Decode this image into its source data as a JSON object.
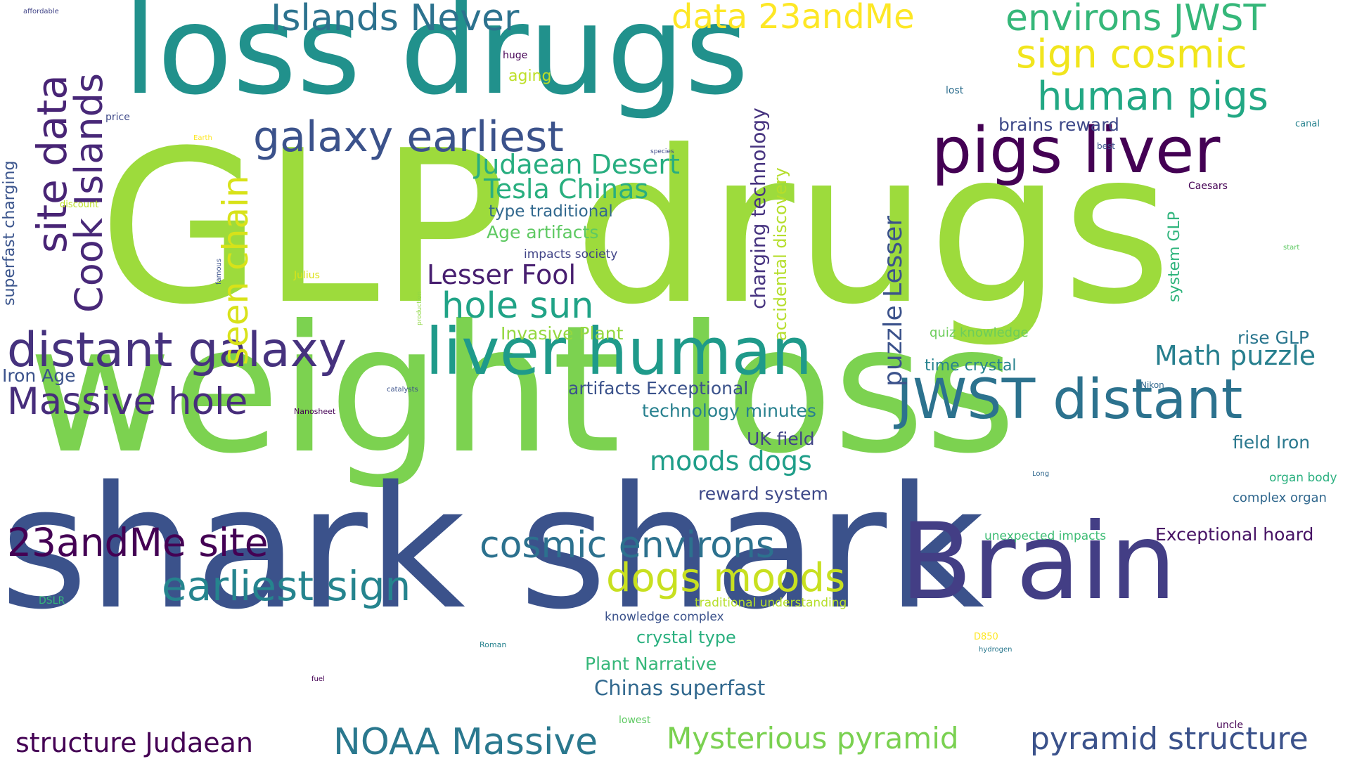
{
  "words": [
    {
      "text": "GLP drugs",
      "color": "#9ddb3c"
    },
    {
      "text": "weight loss",
      "color": "#7cd250"
    },
    {
      "text": "shark shark",
      "color": "#3b528b"
    },
    {
      "text": "loss drugs",
      "color": "#21918c"
    },
    {
      "text": "Brain",
      "color": "#433e85"
    },
    {
      "text": "pigs liver",
      "color": "#440154"
    },
    {
      "text": "liver human",
      "color": "#1f9a8a"
    },
    {
      "text": "JWST distant",
      "color": "#2c728e"
    },
    {
      "text": "distant galaxy",
      "color": "#46327e"
    },
    {
      "text": "Massive hole",
      "color": "#472d7b"
    },
    {
      "text": "23andMe site",
      "color": "#440154"
    },
    {
      "text": "site data",
      "color": "#482475"
    },
    {
      "text": "Cook Islands",
      "color": "#482878"
    },
    {
      "text": "seen chain",
      "color": "#d8e219"
    },
    {
      "text": "galaxy earliest",
      "color": "#3b528b"
    },
    {
      "text": "Islands Never",
      "color": "#2c728e"
    },
    {
      "text": "data 23andMe",
      "color": "#fde725"
    },
    {
      "text": "environs JWST",
      "color": "#35b779"
    },
    {
      "text": "sign cosmic",
      "color": "#f1e51d"
    },
    {
      "text": "human pigs",
      "color": "#22a884"
    },
    {
      "text": "brains reward",
      "color": "#3e4989"
    },
    {
      "text": "Judaean Desert",
      "color": "#28ae80"
    },
    {
      "text": "Tesla Chinas",
      "color": "#29af7f"
    },
    {
      "text": "type traditional",
      "color": "#31688e"
    },
    {
      "text": "Age artifacts",
      "color": "#5ec962"
    },
    {
      "text": "impacts society",
      "color": "#414487"
    },
    {
      "text": "Lesser Fool",
      "color": "#481f70"
    },
    {
      "text": "hole sun",
      "color": "#20a386"
    },
    {
      "text": "Invasive Plant",
      "color": "#95d840"
    },
    {
      "text": "cosmic environs",
      "color": "#2c718e"
    },
    {
      "text": "earliest sign",
      "color": "#25848e"
    },
    {
      "text": "dogs moods",
      "color": "#c8e020"
    },
    {
      "text": "artifacts Exceptional",
      "color": "#3b528b"
    },
    {
      "text": "technology minutes",
      "color": "#27808e"
    },
    {
      "text": "UK field",
      "color": "#414487"
    },
    {
      "text": "moods dogs",
      "color": "#1f9e89"
    },
    {
      "text": "reward system",
      "color": "#3e4989"
    },
    {
      "text": "charging technology",
      "color": "#46337f"
    },
    {
      "text": "accidental discovery",
      "color": "#b5de2b"
    },
    {
      "text": "puzzle Lesser",
      "color": "#3b528b"
    },
    {
      "text": "superfast charging",
      "color": "#3a548c"
    },
    {
      "text": "system GLP",
      "color": "#2fb47c"
    },
    {
      "text": "Math puzzle",
      "color": "#277f8e"
    },
    {
      "text": "time crystal",
      "color": "#26828e"
    },
    {
      "text": "rise GLP",
      "color": "#2a768e"
    },
    {
      "text": "quiz knowledge",
      "color": "#6ccd5a"
    },
    {
      "text": "field Iron",
      "color": "#2a788e"
    },
    {
      "text": "organ body",
      "color": "#2ab07f"
    },
    {
      "text": "complex organ",
      "color": "#31688e"
    },
    {
      "text": "unexpected impacts",
      "color": "#3dbc74"
    },
    {
      "text": "Exceptional hoard",
      "color": "#471365"
    },
    {
      "text": "pyramid structure",
      "color": "#3b528b"
    },
    {
      "text": "Mysterious pyramid",
      "color": "#7ad151"
    },
    {
      "text": "NOAA Massive",
      "color": "#2a788e"
    },
    {
      "text": "structure Judaean",
      "color": "#440154"
    },
    {
      "text": "Chinas superfast",
      "color": "#31688e"
    },
    {
      "text": "Plant Narrative",
      "color": "#35b779"
    },
    {
      "text": "crystal type",
      "color": "#2ab07f"
    },
    {
      "text": "knowledge complex",
      "color": "#3b528b"
    },
    {
      "text": "traditional understanding",
      "color": "#b5de2b"
    },
    {
      "text": "Iron Age",
      "color": "#3b528b"
    },
    {
      "text": "huge",
      "color": "#440154"
    },
    {
      "text": "aging",
      "color": "#bddf26"
    },
    {
      "text": "lost",
      "color": "#2e6e8e"
    },
    {
      "text": "best",
      "color": "#3b528b"
    },
    {
      "text": "canal",
      "color": "#26828e"
    },
    {
      "text": "Caesars",
      "color": "#440154"
    },
    {
      "text": "start",
      "color": "#5ec962"
    },
    {
      "text": "price",
      "color": "#3e4989"
    },
    {
      "text": "affordable",
      "color": "#414487"
    },
    {
      "text": "Earth",
      "color": "#fde725"
    },
    {
      "text": "discount",
      "color": "#bddf26"
    },
    {
      "text": "Julius",
      "color": "#dde318"
    },
    {
      "text": "famous",
      "color": "#3b528b"
    },
    {
      "text": "production",
      "color": "#8fd744"
    },
    {
      "text": "species",
      "color": "#3e4989"
    },
    {
      "text": "catalysts",
      "color": "#3b528b"
    },
    {
      "text": "Nanosheet",
      "color": "#440154"
    },
    {
      "text": "Nikon",
      "color": "#31688e"
    },
    {
      "text": "Long",
      "color": "#31688e"
    },
    {
      "text": "DSLR",
      "color": "#35b779"
    },
    {
      "text": "Roman",
      "color": "#26828e"
    },
    {
      "text": "fuel",
      "color": "#440154"
    },
    {
      "text": "D850",
      "color": "#fde725"
    },
    {
      "text": "hydrogen",
      "color": "#2a788e"
    },
    {
      "text": "lowest",
      "color": "#5ec962"
    },
    {
      "text": "uncle",
      "color": "#440154"
    }
  ]
}
